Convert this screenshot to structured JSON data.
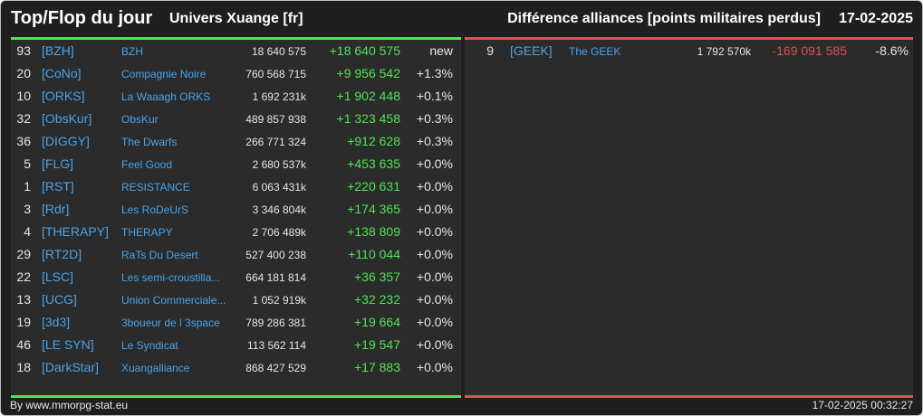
{
  "header": {
    "title": "Top/Flop du jour",
    "universe": "Univers Xuange [fr]",
    "subtitle": "Différence alliances [points militaires perdus]",
    "date": "17-02-2025"
  },
  "colors": {
    "positive": "#4ee455",
    "negative": "#e05252",
    "link": "#4aa3e8"
  },
  "top": [
    {
      "rank": "93",
      "tag": "[BZH]",
      "name": "BZH",
      "total": "18 640 575",
      "diff": "+18 640 575",
      "pct": "new"
    },
    {
      "rank": "20",
      "tag": "[CoNo]",
      "name": "Compagnie Noire",
      "total": "760 568 715",
      "diff": "+9 956 542",
      "pct": "+1.3%"
    },
    {
      "rank": "10",
      "tag": "[ORKS]",
      "name": "La Waaagh ORKS",
      "total": "1 692 231k",
      "diff": "+1 902 448",
      "pct": "+0.1%"
    },
    {
      "rank": "32",
      "tag": "[ObsKur]",
      "name": "ObsKur",
      "total": "489 857 938",
      "diff": "+1 323 458",
      "pct": "+0.3%"
    },
    {
      "rank": "36",
      "tag": "[DIGGY]",
      "name": "The Dwarfs",
      "total": "266 771 324",
      "diff": "+912 628",
      "pct": "+0.3%"
    },
    {
      "rank": "5",
      "tag": "[FLG]",
      "name": "Feel Good",
      "total": "2 680 537k",
      "diff": "+453 635",
      "pct": "+0.0%"
    },
    {
      "rank": "1",
      "tag": "[RST]",
      "name": "RESISTANCE",
      "total": "6 063 431k",
      "diff": "+220 631",
      "pct": "+0.0%"
    },
    {
      "rank": "3",
      "tag": "[Rdr]",
      "name": "Les RoDeUrS",
      "total": "3 346 804k",
      "diff": "+174 365",
      "pct": "+0.0%"
    },
    {
      "rank": "4",
      "tag": "[THERAPY]",
      "name": "THERAPY",
      "total": "2 706 489k",
      "diff": "+138 809",
      "pct": "+0.0%"
    },
    {
      "rank": "29",
      "tag": "[RT2D]",
      "name": "RaTs Du Desert",
      "total": "527 400 238",
      "diff": "+110 044",
      "pct": "+0.0%"
    },
    {
      "rank": "22",
      "tag": "[LSC]",
      "name": "Les semi-croustilla...",
      "total": "664 181 814",
      "diff": "+36 357",
      "pct": "+0.0%"
    },
    {
      "rank": "13",
      "tag": "[UCG]",
      "name": "Union Commerciale...",
      "total": "1 052 919k",
      "diff": "+32 232",
      "pct": "+0.0%"
    },
    {
      "rank": "19",
      "tag": "[3d3]",
      "name": "3boueur de l 3space",
      "total": "789 286 381",
      "diff": "+19 664",
      "pct": "+0.0%"
    },
    {
      "rank": "46",
      "tag": "[LE SYN]",
      "name": "Le Syndicat",
      "total": "113 562 114",
      "diff": "+19 547",
      "pct": "+0.0%"
    },
    {
      "rank": "18",
      "tag": "[DarkStar]",
      "name": "Xuangalliance",
      "total": "868 427 529",
      "diff": "+17 883",
      "pct": "+0.0%"
    }
  ],
  "flop": [
    {
      "rank": "9",
      "tag": "[GEEK]",
      "name": "The GEEK",
      "total": "1 792 570k",
      "diff": "-169 091 585",
      "pct": "-8.6%"
    }
  ],
  "footer": {
    "credit": "By www.mmorpg-stat.eu",
    "timestamp": "17-02-2025 00:32:27"
  }
}
